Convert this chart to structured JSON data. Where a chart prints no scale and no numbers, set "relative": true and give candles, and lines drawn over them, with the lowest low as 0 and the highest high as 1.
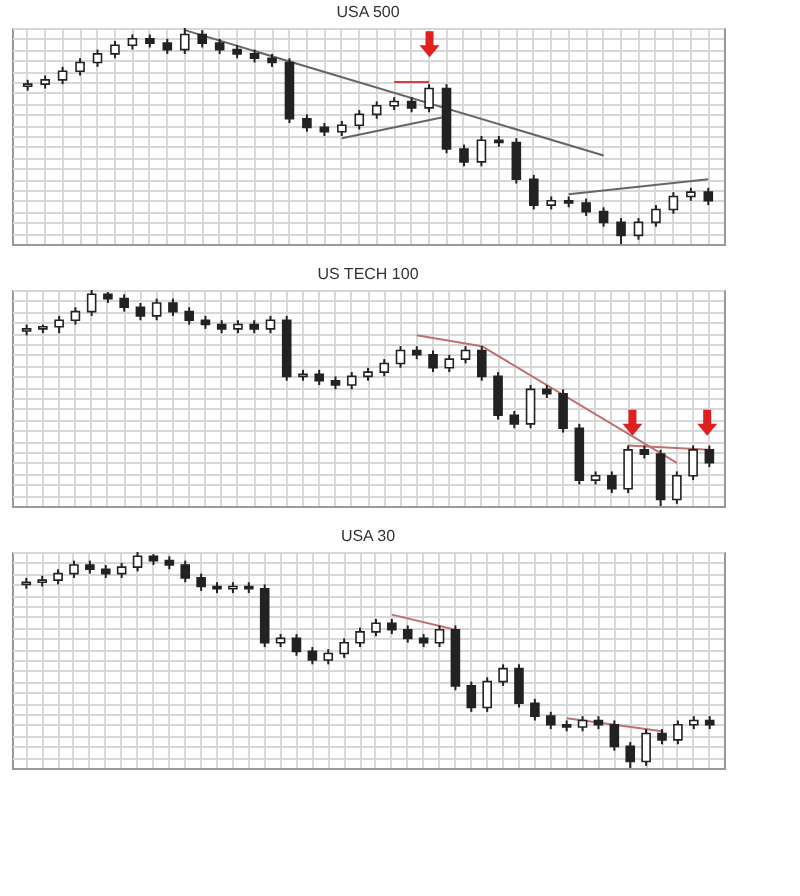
{
  "chart_data": [
    {
      "type": "candlestick",
      "title": "USA 500",
      "relative": true,
      "grid": true,
      "categories": [
        null,
        null,
        null,
        null,
        null,
        null,
        null,
        null,
        null,
        null,
        null,
        null,
        null,
        null,
        null,
        null,
        null,
        null,
        null,
        null,
        null,
        null,
        null,
        null,
        null,
        null,
        null,
        null,
        null,
        null,
        null,
        null,
        null,
        null,
        null,
        null,
        null,
        null,
        null,
        null
      ],
      "ohlc": [
        [
          0.73,
          0.76,
          0.71,
          0.74
        ],
        [
          0.74,
          0.78,
          0.72,
          0.76
        ],
        [
          0.76,
          0.82,
          0.74,
          0.8
        ],
        [
          0.8,
          0.86,
          0.78,
          0.84
        ],
        [
          0.84,
          0.9,
          0.82,
          0.88
        ],
        [
          0.88,
          0.94,
          0.86,
          0.92
        ],
        [
          0.92,
          0.97,
          0.9,
          0.95
        ],
        [
          0.95,
          0.97,
          0.91,
          0.93
        ],
        [
          0.93,
          0.95,
          0.88,
          0.9
        ],
        [
          0.9,
          1.0,
          0.88,
          0.97
        ],
        [
          0.97,
          0.99,
          0.91,
          0.93
        ],
        [
          0.93,
          0.95,
          0.88,
          0.9
        ],
        [
          0.9,
          0.92,
          0.86,
          0.88
        ],
        [
          0.88,
          0.9,
          0.84,
          0.86
        ],
        [
          0.86,
          0.88,
          0.82,
          0.84
        ],
        [
          0.84,
          0.86,
          0.56,
          0.58
        ],
        [
          0.58,
          0.6,
          0.52,
          0.54
        ],
        [
          0.54,
          0.56,
          0.5,
          0.52
        ],
        [
          0.52,
          0.57,
          0.5,
          0.55
        ],
        [
          0.55,
          0.62,
          0.53,
          0.6
        ],
        [
          0.6,
          0.66,
          0.58,
          0.64
        ],
        [
          0.64,
          0.68,
          0.62,
          0.66
        ],
        [
          0.66,
          0.68,
          0.61,
          0.63
        ],
        [
          0.63,
          0.74,
          0.61,
          0.72
        ],
        [
          0.72,
          0.74,
          0.42,
          0.44
        ],
        [
          0.44,
          0.46,
          0.36,
          0.38
        ],
        [
          0.38,
          0.5,
          0.36,
          0.48
        ],
        [
          0.48,
          0.5,
          0.45,
          0.47
        ],
        [
          0.47,
          0.49,
          0.28,
          0.3
        ],
        [
          0.3,
          0.32,
          0.16,
          0.18
        ],
        [
          0.18,
          0.22,
          0.16,
          0.2
        ],
        [
          0.2,
          0.22,
          0.17,
          0.19
        ],
        [
          0.19,
          0.21,
          0.13,
          0.15
        ],
        [
          0.15,
          0.17,
          0.08,
          0.1
        ],
        [
          0.1,
          0.12,
          0.0,
          0.04
        ],
        [
          0.04,
          0.12,
          0.02,
          0.1
        ],
        [
          0.1,
          0.18,
          0.08,
          0.16
        ],
        [
          0.16,
          0.24,
          0.14,
          0.22
        ],
        [
          0.22,
          0.26,
          0.2,
          0.24
        ],
        [
          0.24,
          0.26,
          0.18,
          0.2
        ]
      ],
      "series": [
        {
          "type": "line",
          "color": "#666666",
          "values": [
            null,
            null,
            null,
            null,
            null,
            null,
            null,
            null,
            null,
            0.99,
            null,
            null,
            null,
            null,
            null,
            null,
            null,
            null,
            null,
            null,
            null,
            null,
            null,
            null,
            null,
            null,
            null,
            null,
            null,
            null,
            null,
            null,
            null,
            0.41,
            null,
            null,
            null,
            null,
            null,
            null
          ]
        },
        {
          "type": "line",
          "color": "#666666",
          "values": [
            null,
            null,
            null,
            null,
            null,
            null,
            null,
            null,
            null,
            null,
            null,
            null,
            null,
            null,
            null,
            null,
            null,
            null,
            0.49,
            null,
            null,
            null,
            null,
            null,
            0.59,
            null,
            null,
            null,
            null,
            null,
            null,
            null,
            null,
            null,
            null,
            null,
            null,
            null,
            null,
            null
          ]
        },
        {
          "type": "line",
          "color": "#d84040",
          "values": [
            null,
            null,
            null,
            null,
            null,
            null,
            null,
            null,
            null,
            null,
            null,
            null,
            null,
            null,
            null,
            null,
            null,
            null,
            null,
            null,
            null,
            0.75,
            null,
            0.75,
            null,
            null,
            null,
            null,
            null,
            null,
            null,
            null,
            null,
            null,
            null,
            null,
            null,
            null,
            null,
            null
          ]
        },
        {
          "type": "line",
          "color": "#666666",
          "values": [
            null,
            null,
            null,
            null,
            null,
            null,
            null,
            null,
            null,
            null,
            null,
            null,
            null,
            null,
            null,
            null,
            null,
            null,
            null,
            null,
            null,
            null,
            null,
            null,
            null,
            null,
            null,
            null,
            null,
            null,
            null,
            0.23,
            null,
            null,
            null,
            null,
            null,
            null,
            null,
            0.3
          ]
        }
      ]
    },
    {
      "type": "candlestick",
      "title": "US TECH 100",
      "relative": true,
      "grid": true,
      "categories": [
        null,
        null,
        null,
        null,
        null,
        null,
        null,
        null,
        null,
        null,
        null,
        null,
        null,
        null,
        null,
        null,
        null,
        null,
        null,
        null,
        null,
        null,
        null,
        null,
        null,
        null,
        null,
        null,
        null,
        null,
        null,
        null,
        null,
        null,
        null,
        null,
        null,
        null,
        null,
        null,
        null,
        null,
        null
      ],
      "ohlc": [
        [
          0.81,
          0.84,
          0.79,
          0.82
        ],
        [
          0.82,
          0.84,
          0.8,
          0.83
        ],
        [
          0.83,
          0.88,
          0.8,
          0.86
        ],
        [
          0.86,
          0.92,
          0.84,
          0.9
        ],
        [
          0.9,
          1.0,
          0.88,
          0.98
        ],
        [
          0.98,
          0.99,
          0.94,
          0.96
        ],
        [
          0.96,
          0.98,
          0.9,
          0.92
        ],
        [
          0.92,
          0.94,
          0.86,
          0.88
        ],
        [
          0.88,
          0.96,
          0.86,
          0.94
        ],
        [
          0.94,
          0.96,
          0.88,
          0.9
        ],
        [
          0.9,
          0.92,
          0.84,
          0.86
        ],
        [
          0.86,
          0.88,
          0.82,
          0.84
        ],
        [
          0.84,
          0.86,
          0.8,
          0.82
        ],
        [
          0.82,
          0.86,
          0.8,
          0.84
        ],
        [
          0.84,
          0.86,
          0.8,
          0.82
        ],
        [
          0.82,
          0.88,
          0.8,
          0.86
        ],
        [
          0.86,
          0.88,
          0.58,
          0.6
        ],
        [
          0.6,
          0.63,
          0.58,
          0.61
        ],
        [
          0.61,
          0.63,
          0.56,
          0.58
        ],
        [
          0.58,
          0.6,
          0.54,
          0.56
        ],
        [
          0.56,
          0.62,
          0.54,
          0.6
        ],
        [
          0.6,
          0.64,
          0.58,
          0.62
        ],
        [
          0.62,
          0.68,
          0.6,
          0.66
        ],
        [
          0.66,
          0.74,
          0.64,
          0.72
        ],
        [
          0.72,
          0.74,
          0.68,
          0.7
        ],
        [
          0.7,
          0.72,
          0.62,
          0.64
        ],
        [
          0.64,
          0.7,
          0.62,
          0.68
        ],
        [
          0.68,
          0.74,
          0.66,
          0.72
        ],
        [
          0.72,
          0.74,
          0.58,
          0.6
        ],
        [
          0.6,
          0.62,
          0.4,
          0.42
        ],
        [
          0.42,
          0.44,
          0.36,
          0.38
        ],
        [
          0.38,
          0.56,
          0.36,
          0.54
        ],
        [
          0.54,
          0.56,
          0.5,
          0.52
        ],
        [
          0.52,
          0.54,
          0.34,
          0.36
        ],
        [
          0.36,
          0.38,
          0.1,
          0.12
        ],
        [
          0.12,
          0.16,
          0.1,
          0.14
        ],
        [
          0.14,
          0.16,
          0.06,
          0.08
        ],
        [
          0.08,
          0.28,
          0.06,
          0.26
        ],
        [
          0.26,
          0.28,
          0.22,
          0.24
        ],
        [
          0.24,
          0.26,
          0.0,
          0.03
        ],
        [
          0.03,
          0.16,
          0.01,
          0.14
        ],
        [
          0.14,
          0.28,
          0.12,
          0.26
        ],
        [
          0.26,
          0.28,
          0.18,
          0.2
        ]
      ],
      "series": [
        {
          "type": "line",
          "color": "#c07070",
          "values": [
            null,
            null,
            null,
            null,
            null,
            null,
            null,
            null,
            null,
            null,
            null,
            null,
            null,
            null,
            null,
            null,
            null,
            null,
            null,
            null,
            null,
            null,
            null,
            null,
            0.79,
            null,
            null,
            null,
            0.74,
            null,
            null,
            null,
            null,
            null,
            null,
            null,
            null,
            null,
            null,
            null,
            0.2,
            null,
            null
          ]
        },
        {
          "type": "line",
          "color": "#c07070",
          "values": [
            null,
            null,
            null,
            null,
            null,
            null,
            null,
            null,
            null,
            null,
            null,
            null,
            null,
            null,
            null,
            null,
            null,
            null,
            null,
            null,
            null,
            null,
            null,
            null,
            null,
            null,
            null,
            null,
            null,
            null,
            null,
            null,
            null,
            null,
            null,
            null,
            null,
            0.28,
            null,
            null,
            null,
            null,
            0.26
          ]
        }
      ]
    },
    {
      "type": "candlestick",
      "title": "USA 30",
      "relative": true,
      "grid": true,
      "categories": [
        null,
        null,
        null,
        null,
        null,
        null,
        null,
        null,
        null,
        null,
        null,
        null,
        null,
        null,
        null,
        null,
        null,
        null,
        null,
        null,
        null,
        null,
        null,
        null,
        null,
        null,
        null,
        null,
        null,
        null,
        null,
        null,
        null,
        null,
        null,
        null,
        null,
        null,
        null,
        null,
        null,
        null,
        null,
        null
      ],
      "ohlc": [
        [
          0.85,
          0.88,
          0.83,
          0.86
        ],
        [
          0.86,
          0.89,
          0.84,
          0.87
        ],
        [
          0.87,
          0.92,
          0.85,
          0.9
        ],
        [
          0.9,
          0.96,
          0.88,
          0.94
        ],
        [
          0.94,
          0.96,
          0.9,
          0.92
        ],
        [
          0.92,
          0.94,
          0.88,
          0.9
        ],
        [
          0.9,
          0.95,
          0.88,
          0.93
        ],
        [
          0.93,
          1.0,
          0.91,
          0.98
        ],
        [
          0.98,
          0.99,
          0.94,
          0.96
        ],
        [
          0.96,
          0.98,
          0.92,
          0.94
        ],
        [
          0.94,
          0.96,
          0.86,
          0.88
        ],
        [
          0.88,
          0.9,
          0.82,
          0.84
        ],
        [
          0.84,
          0.86,
          0.81,
          0.83
        ],
        [
          0.83,
          0.86,
          0.81,
          0.84
        ],
        [
          0.84,
          0.86,
          0.81,
          0.83
        ],
        [
          0.83,
          0.85,
          0.56,
          0.58
        ],
        [
          0.58,
          0.62,
          0.56,
          0.6
        ],
        [
          0.6,
          0.62,
          0.52,
          0.54
        ],
        [
          0.54,
          0.56,
          0.48,
          0.5
        ],
        [
          0.5,
          0.55,
          0.48,
          0.53
        ],
        [
          0.53,
          0.6,
          0.51,
          0.58
        ],
        [
          0.58,
          0.65,
          0.56,
          0.63
        ],
        [
          0.63,
          0.69,
          0.61,
          0.67
        ],
        [
          0.67,
          0.69,
          0.62,
          0.64
        ],
        [
          0.64,
          0.66,
          0.58,
          0.6
        ],
        [
          0.6,
          0.62,
          0.56,
          0.58
        ],
        [
          0.58,
          0.66,
          0.56,
          0.64
        ],
        [
          0.64,
          0.66,
          0.36,
          0.38
        ],
        [
          0.38,
          0.4,
          0.26,
          0.28
        ],
        [
          0.28,
          0.42,
          0.26,
          0.4
        ],
        [
          0.4,
          0.48,
          0.38,
          0.46
        ],
        [
          0.46,
          0.48,
          0.28,
          0.3
        ],
        [
          0.3,
          0.32,
          0.22,
          0.24
        ],
        [
          0.24,
          0.26,
          0.18,
          0.2
        ],
        [
          0.2,
          0.22,
          0.17,
          0.19
        ],
        [
          0.19,
          0.24,
          0.17,
          0.22
        ],
        [
          0.22,
          0.24,
          0.18,
          0.2
        ],
        [
          0.2,
          0.22,
          0.08,
          0.1
        ],
        [
          0.1,
          0.12,
          0.0,
          0.03
        ],
        [
          0.03,
          0.18,
          0.01,
          0.16
        ],
        [
          0.16,
          0.18,
          0.11,
          0.13
        ],
        [
          0.13,
          0.22,
          0.11,
          0.2
        ],
        [
          0.2,
          0.24,
          0.18,
          0.22
        ],
        [
          0.22,
          0.24,
          0.18,
          0.2
        ]
      ],
      "series": [
        {
          "type": "line",
          "color": "#c07070",
          "values": [
            null,
            null,
            null,
            null,
            null,
            null,
            null,
            null,
            null,
            null,
            null,
            null,
            null,
            null,
            null,
            null,
            null,
            null,
            null,
            null,
            null,
            null,
            null,
            0.71,
            null,
            null,
            null,
            0.64,
            null,
            null,
            null,
            null,
            null,
            null,
            null,
            null,
            null,
            null,
            null,
            null,
            null,
            null,
            null,
            null
          ]
        },
        {
          "type": "line",
          "color": "#c07070",
          "values": [
            null,
            null,
            null,
            null,
            null,
            null,
            null,
            null,
            null,
            null,
            null,
            null,
            null,
            null,
            null,
            null,
            null,
            null,
            null,
            null,
            null,
            null,
            null,
            null,
            null,
            null,
            null,
            null,
            null,
            null,
            null,
            null,
            null,
            null,
            0.23,
            null,
            null,
            null,
            null,
            null,
            0.17,
            null,
            null,
            null
          ]
        }
      ]
    }
  ]
}
